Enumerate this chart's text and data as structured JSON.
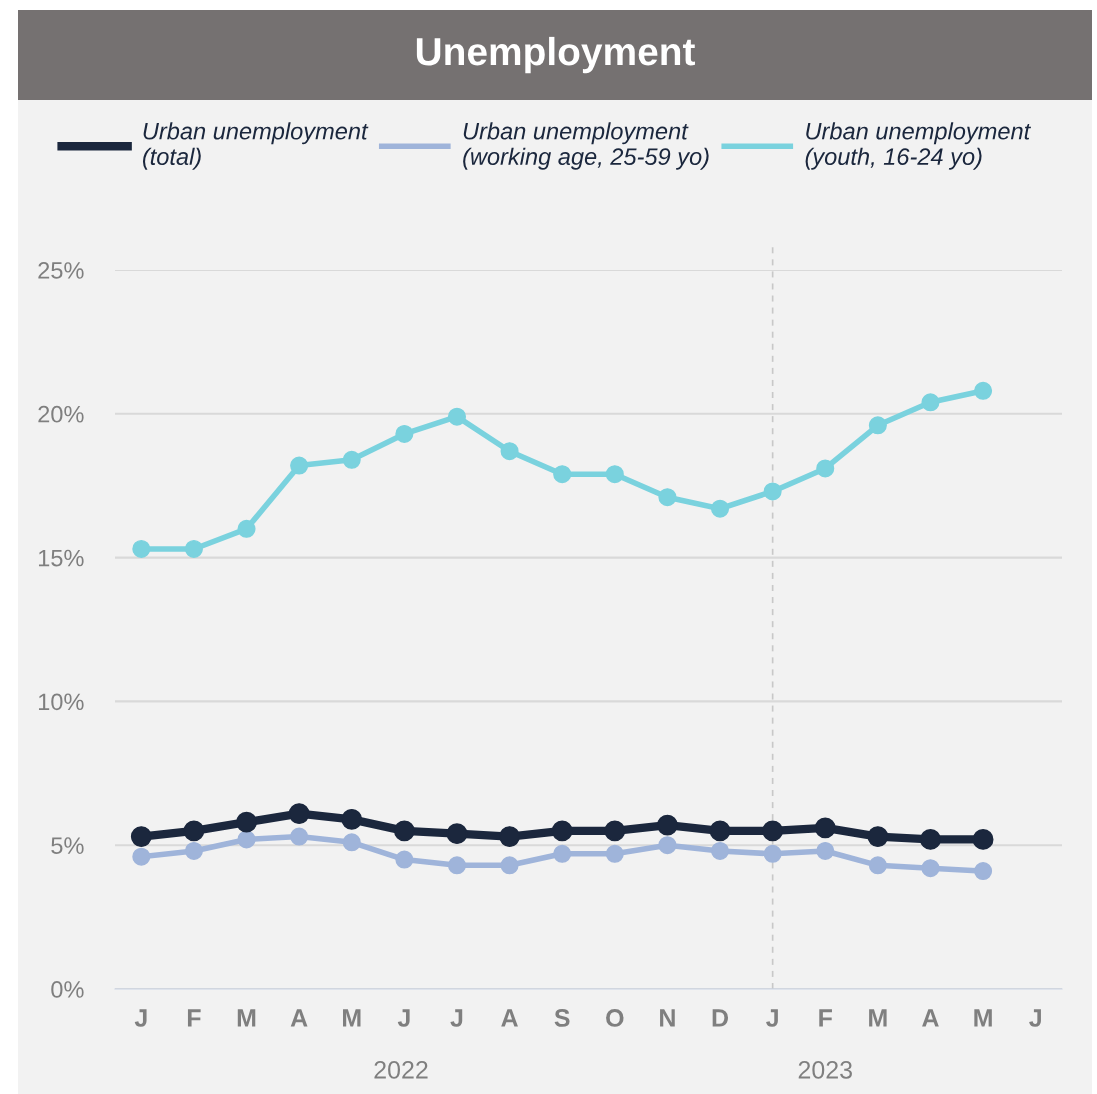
{
  "chart_data": {
    "type": "line",
    "title": "Unemployment",
    "categories": [
      "J",
      "F",
      "M",
      "A",
      "M",
      "J",
      "J",
      "A",
      "S",
      "O",
      "N",
      "D",
      "J",
      "F",
      "M",
      "A",
      "M",
      "J"
    ],
    "series": [
      {
        "name": "Urban unemployment\n(total)",
        "color": "#1b273d",
        "values": [
          5.3,
          5.5,
          5.8,
          6.1,
          5.9,
          5.5,
          5.4,
          5.3,
          5.5,
          5.5,
          5.7,
          5.5,
          5.5,
          5.6,
          5.3,
          5.2,
          5.2,
          null
        ]
      },
      {
        "name": "Urban unemployment\n(working age, 25-59 yo)",
        "color": "#9fb4da",
        "values": [
          4.6,
          4.8,
          5.2,
          5.3,
          5.1,
          4.5,
          4.3,
          4.3,
          4.7,
          4.7,
          5.0,
          4.8,
          4.7,
          4.8,
          4.3,
          4.2,
          4.1,
          null
        ]
      },
      {
        "name": "Urban unemployment\n(youth, 16-24 yo)",
        "color": "#7ad2de",
        "values": [
          15.3,
          15.3,
          16.0,
          18.2,
          18.4,
          19.3,
          19.9,
          18.7,
          17.9,
          17.9,
          17.1,
          16.7,
          17.3,
          18.1,
          19.6,
          20.4,
          20.8,
          null
        ]
      }
    ],
    "ylim": [
      0,
      25
    ],
    "yticks": [
      {
        "value": 0,
        "label": "0%"
      },
      {
        "value": 5,
        "label": "5%"
      },
      {
        "value": 10,
        "label": "10%"
      },
      {
        "value": 15,
        "label": "15%"
      },
      {
        "value": 20,
        "label": "20%"
      },
      {
        "value": 25,
        "label": "25%"
      }
    ],
    "annotations": [
      "2022",
      "2023"
    ],
    "grid": "y",
    "legend": "top",
    "marker": "circle",
    "line_style": "solid"
  }
}
